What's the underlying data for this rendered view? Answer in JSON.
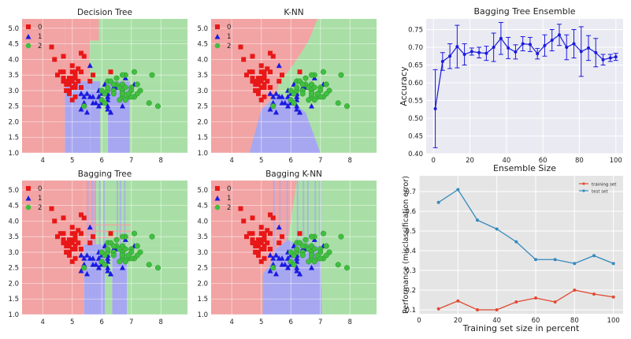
{
  "chart_data": [
    {
      "type": "scatter",
      "title": "Decision Tree",
      "xlim": [
        3.3,
        8.9
      ],
      "ylim": [
        1.0,
        5.3
      ],
      "xticks": [
        "4",
        "5",
        "6",
        "7",
        "8"
      ],
      "yticks": [
        "1.0",
        "1.5",
        "2.0",
        "2.5",
        "3.0",
        "3.5",
        "4.0",
        "4.5",
        "5.0"
      ],
      "legend": [
        "0",
        "1",
        "2"
      ],
      "legend_position": "top-left",
      "background": "decision-regions"
    },
    {
      "type": "scatter",
      "title": "K-NN",
      "xlim": [
        3.3,
        8.9
      ],
      "ylim": [
        1.0,
        5.3
      ],
      "xticks": [
        "4",
        "5",
        "6",
        "7",
        "8"
      ],
      "yticks": [
        "1.0",
        "1.5",
        "2.0",
        "2.5",
        "3.0",
        "3.5",
        "4.0",
        "4.5",
        "5.0"
      ],
      "legend": [
        "0",
        "1",
        "2"
      ],
      "legend_position": "top-left",
      "background": "decision-regions"
    },
    {
      "type": "scatter",
      "title": "Bagging Tree",
      "xlim": [
        3.3,
        8.9
      ],
      "ylim": [
        1.0,
        5.3
      ],
      "xticks": [
        "4",
        "5",
        "6",
        "7",
        "8"
      ],
      "yticks": [
        "1.0",
        "1.5",
        "2.0",
        "2.5",
        "3.0",
        "3.5",
        "4.0",
        "4.5",
        "5.0"
      ],
      "legend": [
        "0",
        "1",
        "2"
      ],
      "legend_position": "top-left",
      "background": "decision-regions"
    },
    {
      "type": "scatter",
      "title": "Bagging K-NN",
      "xlim": [
        3.3,
        8.9
      ],
      "ylim": [
        1.0,
        5.3
      ],
      "xticks": [
        "4",
        "5",
        "6",
        "7",
        "8"
      ],
      "yticks": [
        "1.0",
        "1.5",
        "2.0",
        "2.5",
        "3.0",
        "3.5",
        "4.0",
        "4.5",
        "5.0"
      ],
      "legend": [
        "0",
        "1",
        "2"
      ],
      "legend_position": "top-left",
      "background": "decision-regions"
    },
    {
      "type": "line",
      "title": "Bagging Tree Ensemble",
      "xlabel": "Ensemble Size",
      "ylabel": "Accuracy",
      "xlim": [
        -4,
        104
      ],
      "ylim": [
        0.4,
        0.78
      ],
      "xticks": [
        "0",
        "20",
        "40",
        "60",
        "80",
        "100"
      ],
      "yticks": [
        "0.40",
        "0.45",
        "0.50",
        "0.55",
        "0.60",
        "0.65",
        "0.70",
        "0.75"
      ],
      "x": [
        1,
        5,
        9,
        13,
        17,
        21,
        25,
        29,
        33,
        37,
        41,
        45,
        49,
        53,
        57,
        61,
        65,
        69,
        73,
        77,
        81,
        85,
        89,
        93,
        97,
        100
      ],
      "y": [
        0.527,
        0.66,
        0.675,
        0.702,
        0.68,
        0.688,
        0.685,
        0.683,
        0.7,
        0.725,
        0.698,
        0.687,
        0.71,
        0.708,
        0.682,
        0.705,
        0.72,
        0.735,
        0.7,
        0.71,
        0.688,
        0.698,
        0.685,
        0.665,
        0.67,
        0.673
      ],
      "err": [
        0.11,
        0.025,
        0.035,
        0.06,
        0.03,
        0.01,
        0.015,
        0.02,
        0.04,
        0.045,
        0.03,
        0.02,
        0.02,
        0.02,
        0.015,
        0.03,
        0.03,
        0.03,
        0.035,
        0.04,
        0.07,
        0.035,
        0.04,
        0.015,
        0.01,
        0.01
      ],
      "color": "#1a1adf",
      "grid": true
    },
    {
      "type": "line",
      "xlabel": "Training set size in percent",
      "ylabel": "Performance (misclassification error)",
      "xlim": [
        0,
        105
      ],
      "ylim": [
        0.08,
        0.78
      ],
      "xticks": [
        "0",
        "20",
        "40",
        "60",
        "80",
        "100"
      ],
      "yticks": [
        "0.1",
        "0.2",
        "0.3",
        "0.4",
        "0.5",
        "0.6",
        "0.7"
      ],
      "x": [
        10,
        20,
        30,
        40,
        50,
        60,
        70,
        80,
        90,
        100
      ],
      "series": [
        {
          "name": "training set",
          "values": [
            0.105,
            0.145,
            0.1,
            0.1,
            0.14,
            0.16,
            0.14,
            0.2,
            0.18,
            0.165
          ],
          "color": "#e24a33"
        },
        {
          "name": "test set",
          "values": [
            0.645,
            0.71,
            0.555,
            0.51,
            0.445,
            0.355,
            0.355,
            0.335,
            0.375,
            0.335
          ],
          "color": "#348abd"
        }
      ],
      "legend_position": "top-right",
      "grid": true
    }
  ]
}
